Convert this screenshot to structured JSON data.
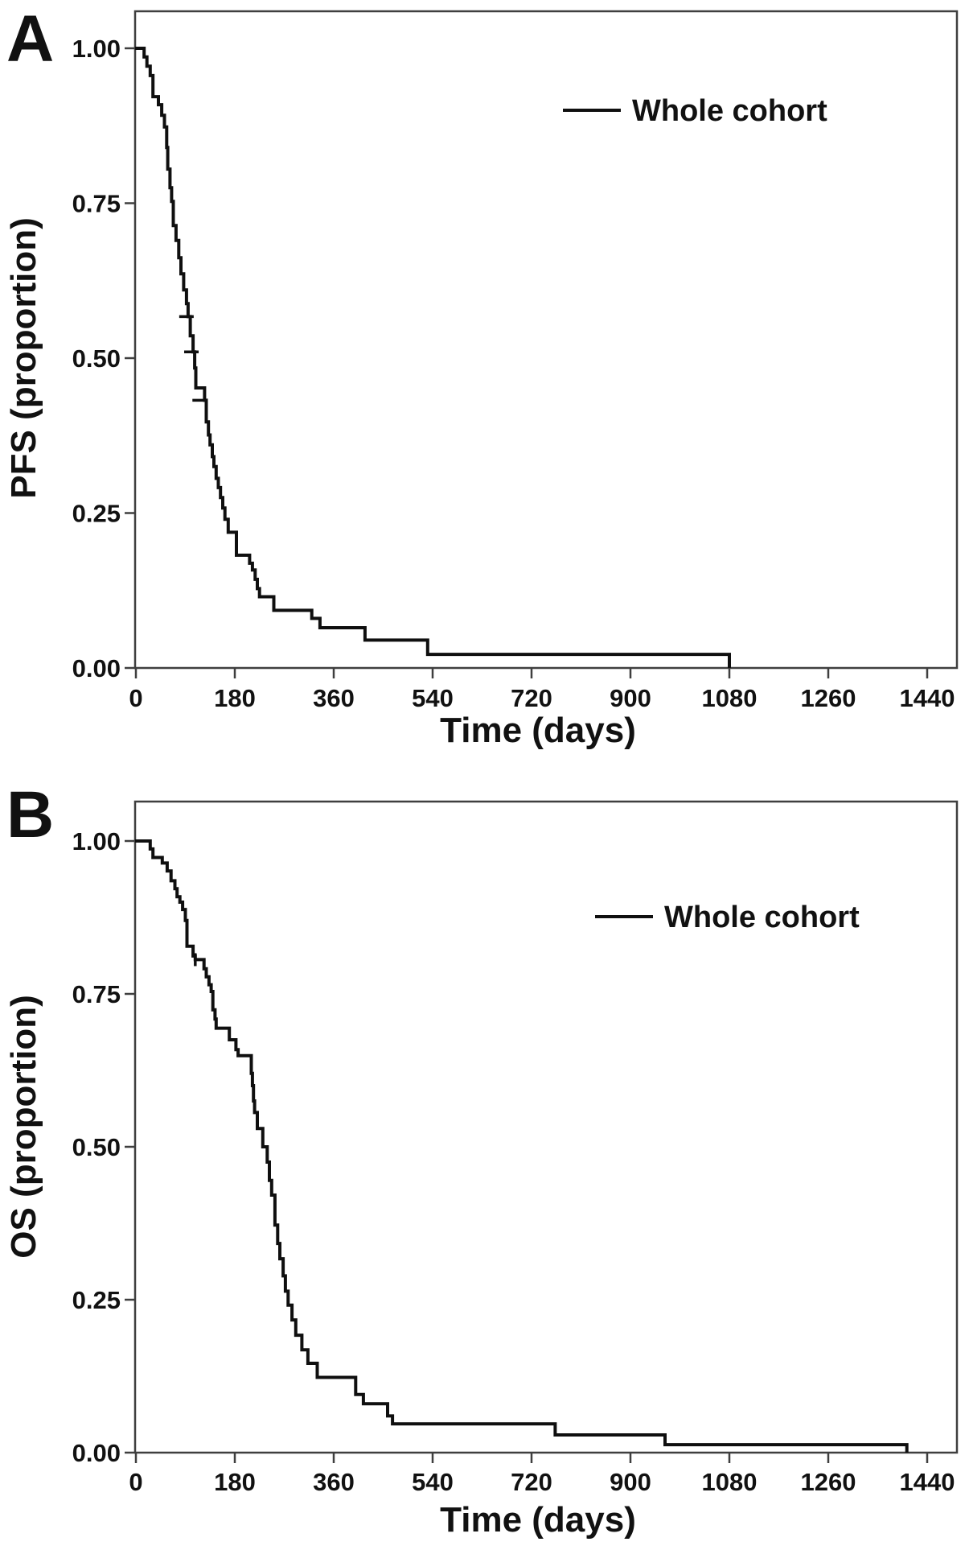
{
  "figure": {
    "background": "#ffffff",
    "colors": {
      "curve": "#0f0f0f",
      "axis": "#3f3f3f",
      "text": "#111111"
    }
  },
  "chart_data": [
    {
      "type": "line",
      "subtype": "kaplan-meier-step",
      "panel_label": "A",
      "title": "",
      "xlabel": "Time (days)",
      "ylabel": "PFS (proportion)",
      "xlim": [
        0,
        1495
      ],
      "ylim": [
        0.0,
        1.0
      ],
      "xticks": [
        0,
        180,
        360,
        540,
        720,
        900,
        1080,
        1260,
        1440
      ],
      "yticks": [
        0.0,
        0.25,
        0.5,
        0.75,
        1.0
      ],
      "ytick_labels": [
        "0.00",
        "0.25",
        "0.50",
        "0.75",
        "1.00"
      ],
      "grid": false,
      "legend": {
        "label": "Whole cohort",
        "position": "inside-upper-right"
      },
      "series": [
        {
          "name": "Whole cohort",
          "color": "#0f0f0f",
          "step": true,
          "points": [
            [
              0,
              1.0
            ],
            [
              15,
              0.986
            ],
            [
              20,
              0.971
            ],
            [
              26,
              0.956
            ],
            [
              31,
              0.922
            ],
            [
              41,
              0.909
            ],
            [
              47,
              0.892
            ],
            [
              52,
              0.873
            ],
            [
              56,
              0.84
            ],
            [
              58,
              0.805
            ],
            [
              62,
              0.775
            ],
            [
              65,
              0.753
            ],
            [
              68,
              0.714
            ],
            [
              73,
              0.69
            ],
            [
              78,
              0.662
            ],
            [
              82,
              0.636
            ],
            [
              87,
              0.61
            ],
            [
              92,
              0.588
            ],
            [
              95,
              0.567
            ],
            [
              99,
              0.536
            ],
            [
              104,
              0.51
            ],
            [
              107,
              0.484
            ],
            [
              109,
              0.452
            ],
            [
              125,
              0.432
            ],
            [
              128,
              0.397
            ],
            [
              132,
              0.376
            ],
            [
              135,
              0.36
            ],
            [
              139,
              0.341
            ],
            [
              142,
              0.325
            ],
            [
              146,
              0.306
            ],
            [
              150,
              0.291
            ],
            [
              154,
              0.275
            ],
            [
              158,
              0.258
            ],
            [
              162,
              0.24
            ],
            [
              168,
              0.219
            ],
            [
              183,
              0.182
            ],
            [
              207,
              0.169
            ],
            [
              212,
              0.158
            ],
            [
              217,
              0.143
            ],
            [
              221,
              0.128
            ],
            [
              225,
              0.115
            ],
            [
              251,
              0.093
            ],
            [
              320,
              0.08
            ],
            [
              335,
              0.065
            ],
            [
              417,
              0.045
            ],
            [
              531,
              0.022
            ],
            [
              1080,
              0.0
            ]
          ]
        }
      ],
      "censor_marks": [
        {
          "t": 92,
          "s": 0.567,
          "dir": "h"
        },
        {
          "t": 101,
          "s": 0.51,
          "dir": "h"
        },
        {
          "t": 116,
          "s": 0.432,
          "dir": "h"
        }
      ]
    },
    {
      "type": "line",
      "subtype": "kaplan-meier-step",
      "panel_label": "B",
      "title": "",
      "xlabel": "Time (days)",
      "ylabel": "OS (proportion)",
      "xlim": [
        0,
        1495
      ],
      "ylim": [
        0.0,
        1.0
      ],
      "xticks": [
        0,
        180,
        360,
        540,
        720,
        900,
        1080,
        1260,
        1440
      ],
      "yticks": [
        0.0,
        0.25,
        0.5,
        0.75,
        1.0
      ],
      "ytick_labels": [
        "0.00",
        "0.25",
        "0.50",
        "0.75",
        "1.00"
      ],
      "grid": false,
      "legend": {
        "label": "Whole cohort",
        "position": "inside-upper-right"
      },
      "series": [
        {
          "name": "Whole cohort",
          "color": "#0f0f0f",
          "step": true,
          "points": [
            [
              0,
              1.0
            ],
            [
              26,
              0.987
            ],
            [
              31,
              0.973
            ],
            [
              48,
              0.964
            ],
            [
              57,
              0.951
            ],
            [
              64,
              0.935
            ],
            [
              71,
              0.922
            ],
            [
              75,
              0.909
            ],
            [
              80,
              0.9
            ],
            [
              85,
              0.888
            ],
            [
              90,
              0.87
            ],
            [
              93,
              0.828
            ],
            [
              104,
              0.812
            ],
            [
              108,
              0.806
            ],
            [
              124,
              0.791
            ],
            [
              128,
              0.778
            ],
            [
              133,
              0.765
            ],
            [
              137,
              0.754
            ],
            [
              140,
              0.724
            ],
            [
              144,
              0.709
            ],
            [
              146,
              0.694
            ],
            [
              170,
              0.675
            ],
            [
              182,
              0.659
            ],
            [
              186,
              0.649
            ],
            [
              210,
              0.62
            ],
            [
              212,
              0.6
            ],
            [
              214,
              0.575
            ],
            [
              216,
              0.556
            ],
            [
              221,
              0.53
            ],
            [
              231,
              0.5
            ],
            [
              239,
              0.475
            ],
            [
              243,
              0.445
            ],
            [
              247,
              0.421
            ],
            [
              253,
              0.372
            ],
            [
              258,
              0.342
            ],
            [
              262,
              0.317
            ],
            [
              268,
              0.289
            ],
            [
              272,
              0.264
            ],
            [
              277,
              0.241
            ],
            [
              284,
              0.217
            ],
            [
              291,
              0.192
            ],
            [
              302,
              0.168
            ],
            [
              313,
              0.146
            ],
            [
              330,
              0.123
            ],
            [
              400,
              0.095
            ],
            [
              414,
              0.08
            ],
            [
              458,
              0.06
            ],
            [
              467,
              0.047
            ],
            [
              763,
              0.029
            ],
            [
              963,
              0.013
            ],
            [
              1403,
              0.0
            ]
          ]
        }
      ],
      "censor_marks": [
        {
          "t": 108,
          "s": 0.806,
          "dir": "v"
        }
      ]
    }
  ]
}
